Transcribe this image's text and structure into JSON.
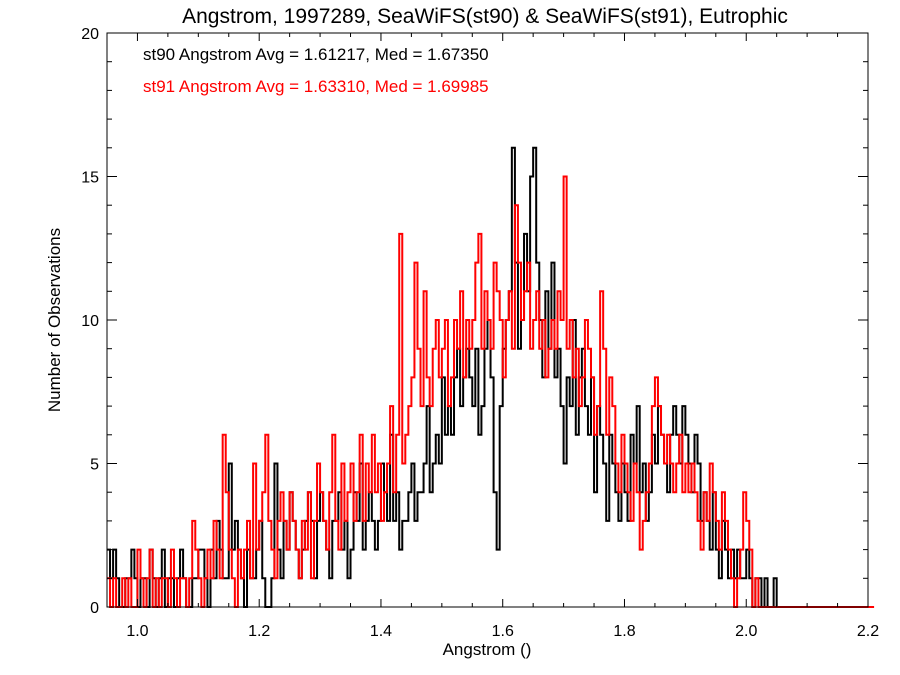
{
  "chart_data": {
    "type": "histogram",
    "title": "Angstrom, 1997289, SeaWiFS(st90) & SeaWiFS(st91), Eutrophic",
    "xlabel": "Angstrom ()",
    "ylabel": "Number of Observations",
    "xlim": [
      0.95,
      2.2
    ],
    "ylim": [
      0,
      20
    ],
    "x_ticks": [
      1.0,
      1.2,
      1.4,
      1.6,
      1.8,
      2.0,
      2.2
    ],
    "x_tick_labels": [
      "1.0",
      "1.2",
      "1.4",
      "1.6",
      "1.8",
      "2.0",
      "2.2"
    ],
    "y_ticks": [
      0,
      5,
      10,
      15,
      20
    ],
    "y_tick_labels": [
      "0",
      "5",
      "10",
      "15",
      "20"
    ],
    "bin_start": 0.95,
    "bin_width": 0.005,
    "annotations": [
      {
        "text": "st90 Angstrom Avg = 1.61217, Med = 1.67350",
        "color": "#000000"
      },
      {
        "text": "st91 Angstrom Avg = 1.63310, Med = 1.69985",
        "color": "#ff0000"
      }
    ],
    "series": [
      {
        "color": "#000000",
        "values": [
          2,
          1,
          2,
          1,
          0,
          0,
          1,
          1,
          2,
          1,
          0,
          1,
          1,
          0,
          2,
          1,
          0,
          1,
          2,
          0,
          1,
          1,
          0,
          1,
          2,
          1,
          0,
          0,
          1,
          1,
          2,
          2,
          1,
          0,
          2,
          1,
          3,
          2,
          1,
          1,
          5,
          2,
          3,
          2,
          1,
          0,
          2,
          1,
          1,
          2,
          3,
          1,
          0,
          0,
          1,
          5,
          2,
          1,
          3,
          2,
          4,
          3,
          2,
          1,
          2,
          3,
          4,
          3,
          1,
          3,
          4,
          3,
          2,
          1,
          3,
          3,
          4,
          2,
          3,
          1,
          2,
          4,
          3,
          5,
          2,
          3,
          4,
          3,
          2,
          3,
          5,
          4,
          3,
          6,
          3,
          4,
          2,
          3,
          3,
          4,
          5,
          3,
          4,
          4,
          5,
          7,
          4,
          5,
          6,
          5,
          8,
          6,
          7,
          6,
          8,
          9,
          7,
          8,
          9,
          8,
          7,
          9,
          6,
          7,
          9,
          10,
          8,
          4,
          2,
          7,
          9,
          10,
          11,
          16,
          12,
          9,
          10,
          13,
          11,
          15,
          16,
          12,
          10,
          8,
          11,
          9,
          12,
          8,
          9,
          7,
          5,
          8,
          7,
          10,
          6,
          8,
          9,
          7,
          6,
          8,
          4,
          7,
          6,
          5,
          3,
          6,
          5,
          4,
          3,
          5,
          4,
          3,
          6,
          5,
          7,
          4,
          5,
          3,
          4,
          6,
          5,
          7,
          6,
          5,
          4,
          6,
          7,
          6,
          5,
          7,
          6,
          5,
          4,
          6,
          5,
          3,
          4,
          3,
          2,
          4,
          2,
          1,
          3,
          2,
          1,
          2,
          1,
          2,
          1,
          1,
          2,
          1,
          0,
          1,
          1,
          0,
          1,
          0,
          0,
          1,
          0,
          0,
          0,
          0,
          0,
          0,
          0,
          0,
          0,
          0,
          0,
          0,
          0,
          0,
          0,
          0,
          0,
          0,
          0,
          0
        ]
      },
      {
        "color": "#ff0000",
        "values": [
          1,
          0,
          1,
          0,
          0,
          1,
          0,
          1,
          0,
          0,
          2,
          1,
          0,
          1,
          2,
          0,
          1,
          0,
          1,
          1,
          0,
          2,
          1,
          0,
          1,
          1,
          0,
          1,
          3,
          2,
          1,
          0,
          1,
          2,
          1,
          3,
          2,
          1,
          6,
          4,
          2,
          1,
          0,
          2,
          1,
          2,
          3,
          1,
          5,
          2,
          3,
          4,
          6,
          3,
          2,
          1,
          3,
          4,
          3,
          2,
          4,
          3,
          2,
          1,
          3,
          2,
          4,
          1,
          3,
          5,
          4,
          3,
          2,
          4,
          6,
          3,
          2,
          5,
          3,
          4,
          5,
          3,
          4,
          6,
          3,
          5,
          4,
          6,
          4,
          5,
          3,
          4,
          5,
          7,
          4,
          6,
          13,
          5,
          6,
          7,
          8,
          12,
          9,
          7,
          11,
          8,
          7,
          9,
          10,
          8,
          9,
          10,
          7,
          8,
          10,
          9,
          11,
          8,
          10,
          9,
          10,
          12,
          13,
          9,
          11,
          10,
          9,
          12,
          11,
          10,
          8,
          10,
          11,
          9,
          14,
          12,
          10,
          11,
          12,
          9,
          10,
          11,
          9,
          10,
          8,
          9,
          10,
          9,
          11,
          10,
          15,
          9,
          10,
          8,
          9,
          7,
          8,
          10,
          9,
          8,
          6,
          7,
          11,
          9,
          6,
          8,
          7,
          5,
          4,
          6,
          5,
          4,
          3,
          5,
          4,
          2,
          3,
          4,
          5,
          7,
          8,
          7,
          6,
          5,
          6,
          5,
          4,
          5,
          6,
          4,
          5,
          4,
          5,
          4,
          3,
          2,
          4,
          3,
          5,
          4,
          3,
          2,
          4,
          3,
          2,
          1,
          0,
          1,
          2,
          4,
          3,
          2,
          0,
          1,
          0,
          0,
          0,
          0,
          0,
          0,
          0,
          0,
          0,
          0,
          0,
          0,
          0,
          0,
          0,
          0,
          0,
          0,
          0,
          0,
          0,
          0,
          0,
          0,
          0,
          0,
          0,
          0,
          0,
          0,
          0,
          0,
          0,
          0,
          0,
          0,
          0,
          0
        ]
      }
    ]
  }
}
